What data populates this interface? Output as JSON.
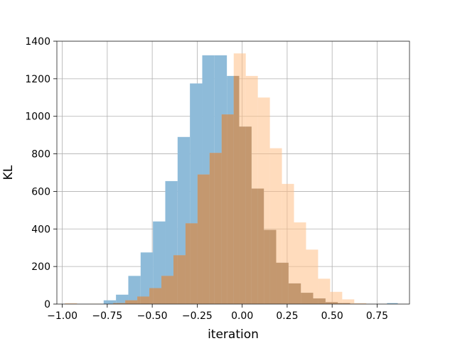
{
  "chart_data": {
    "type": "histogram",
    "xlabel": "iteration",
    "ylabel": "KL",
    "xlim": [
      -1.03,
      0.93
    ],
    "ylim": [
      0,
      1400
    ],
    "x_ticks": [
      -1.0,
      -0.75,
      -0.5,
      -0.25,
      0.0,
      0.25,
      0.5,
      0.75
    ],
    "x_tick_labels": [
      "−1.00",
      "−0.75",
      "−0.50",
      "−0.25",
      "0.00",
      "0.25",
      "0.50",
      "0.75"
    ],
    "y_ticks": [
      0,
      200,
      400,
      600,
      800,
      1000,
      1200,
      1400
    ],
    "y_tick_labels": [
      "0",
      "200",
      "400",
      "600",
      "800",
      "1000",
      "1200",
      "1400"
    ],
    "grid": true,
    "overlap_color": "#c4986f",
    "series": [
      {
        "color": "#8ebbd9",
        "bins": [
          {
            "x0": -0.77,
            "x1": -0.7015,
            "value": 20
          },
          {
            "x0": -0.7015,
            "x1": -0.633,
            "value": 50
          },
          {
            "x0": -0.633,
            "x1": -0.5645,
            "value": 150
          },
          {
            "x0": -0.5645,
            "x1": -0.496,
            "value": 275
          },
          {
            "x0": -0.496,
            "x1": -0.4275,
            "value": 440
          },
          {
            "x0": -0.4275,
            "x1": -0.359,
            "value": 655
          },
          {
            "x0": -0.359,
            "x1": -0.2905,
            "value": 890
          },
          {
            "x0": -0.2905,
            "x1": -0.222,
            "value": 1175
          },
          {
            "x0": -0.222,
            "x1": -0.1535,
            "value": 1325
          },
          {
            "x0": -0.1535,
            "x1": -0.085,
            "value": 1325
          },
          {
            "x0": -0.085,
            "x1": -0.0165,
            "value": 1215
          },
          {
            "x0": -0.0165,
            "x1": 0.052,
            "value": 945
          },
          {
            "x0": 0.052,
            "x1": 0.1205,
            "value": 615
          },
          {
            "x0": 0.1205,
            "x1": 0.189,
            "value": 395
          },
          {
            "x0": 0.189,
            "x1": 0.2575,
            "value": 220
          },
          {
            "x0": 0.2575,
            "x1": 0.326,
            "value": 110
          },
          {
            "x0": 0.326,
            "x1": 0.3945,
            "value": 60
          },
          {
            "x0": 0.3945,
            "x1": 0.463,
            "value": 30
          },
          {
            "x0": 0.463,
            "x1": 0.5315,
            "value": 10
          },
          {
            "x0": 0.5315,
            "x1": 0.6,
            "value": 5
          },
          {
            "x0": 0.805,
            "x1": 0.865,
            "value": 5
          }
        ]
      },
      {
        "color": "#ffbf86",
        "bins": [
          {
            "x0": -0.985,
            "x1": -0.918,
            "value": 5
          },
          {
            "x0": -0.851,
            "x1": -0.784,
            "value": 2
          },
          {
            "x0": -0.717,
            "x1": -0.65,
            "value": 5
          },
          {
            "x0": -0.65,
            "x1": -0.583,
            "value": 20
          },
          {
            "x0": -0.583,
            "x1": -0.516,
            "value": 40
          },
          {
            "x0": -0.516,
            "x1": -0.449,
            "value": 85
          },
          {
            "x0": -0.449,
            "x1": -0.382,
            "value": 150
          },
          {
            "x0": -0.382,
            "x1": -0.315,
            "value": 260
          },
          {
            "x0": -0.315,
            "x1": -0.248,
            "value": 430
          },
          {
            "x0": -0.248,
            "x1": -0.181,
            "value": 690
          },
          {
            "x0": -0.181,
            "x1": -0.114,
            "value": 805
          },
          {
            "x0": -0.114,
            "x1": -0.047,
            "value": 1010
          },
          {
            "x0": -0.047,
            "x1": 0.02,
            "value": 1335
          },
          {
            "x0": 0.02,
            "x1": 0.087,
            "value": 1215
          },
          {
            "x0": 0.087,
            "x1": 0.154,
            "value": 1100
          },
          {
            "x0": 0.154,
            "x1": 0.221,
            "value": 830
          },
          {
            "x0": 0.221,
            "x1": 0.288,
            "value": 640
          },
          {
            "x0": 0.288,
            "x1": 0.355,
            "value": 435
          },
          {
            "x0": 0.355,
            "x1": 0.422,
            "value": 290
          },
          {
            "x0": 0.422,
            "x1": 0.489,
            "value": 135
          },
          {
            "x0": 0.489,
            "x1": 0.556,
            "value": 65
          },
          {
            "x0": 0.556,
            "x1": 0.623,
            "value": 25
          },
          {
            "x0": 0.623,
            "x1": 0.69,
            "value": 5
          }
        ]
      }
    ]
  }
}
